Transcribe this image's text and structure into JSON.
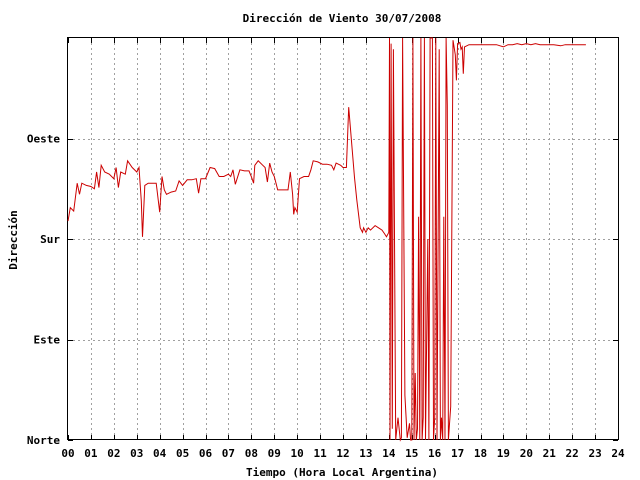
{
  "chart_data": {
    "type": "line",
    "title": "Dirección de Viento 30/07/2008",
    "xlabel": "Tiempo (Hora Local Argentina)",
    "ylabel": "Dirección",
    "xlim": [
      0,
      24
    ],
    "ylim": [
      0,
      360
    ],
    "grid": true,
    "x_tick_labels": [
      "00",
      "01",
      "02",
      "03",
      "04",
      "05",
      "06",
      "07",
      "08",
      "09",
      "10",
      "11",
      "12",
      "13",
      "14",
      "15",
      "16",
      "17",
      "18",
      "19",
      "20",
      "21",
      "22",
      "23",
      "24"
    ],
    "y_ticks": [
      {
        "value": 0,
        "label": "Norte"
      },
      {
        "value": 90,
        "label": "Este"
      },
      {
        "value": 180,
        "label": "Sur"
      },
      {
        "value": 270,
        "label": "Oeste"
      }
    ],
    "series": [
      {
        "color": "#cc0000",
        "points": [
          [
            0.0,
            196
          ],
          [
            0.1,
            208
          ],
          [
            0.25,
            205
          ],
          [
            0.4,
            230
          ],
          [
            0.5,
            220
          ],
          [
            0.6,
            230
          ],
          [
            0.8,
            228
          ],
          [
            1.0,
            227
          ],
          [
            1.15,
            225
          ],
          [
            1.25,
            240
          ],
          [
            1.35,
            226
          ],
          [
            1.45,
            246
          ],
          [
            1.6,
            240
          ],
          [
            1.8,
            238
          ],
          [
            2.0,
            234
          ],
          [
            2.1,
            244
          ],
          [
            2.2,
            226
          ],
          [
            2.3,
            240
          ],
          [
            2.5,
            238
          ],
          [
            2.6,
            250
          ],
          [
            2.8,
            244
          ],
          [
            3.0,
            240
          ],
          [
            3.1,
            244
          ],
          [
            3.2,
            214
          ],
          [
            3.25,
            182
          ],
          [
            3.35,
            228
          ],
          [
            3.5,
            230
          ],
          [
            3.7,
            230
          ],
          [
            3.85,
            230
          ],
          [
            4.0,
            204
          ],
          [
            4.1,
            236
          ],
          [
            4.2,
            224
          ],
          [
            4.3,
            220
          ],
          [
            4.5,
            222
          ],
          [
            4.7,
            223
          ],
          [
            4.85,
            232
          ],
          [
            5.0,
            228
          ],
          [
            5.2,
            233
          ],
          [
            5.4,
            233
          ],
          [
            5.6,
            234
          ],
          [
            5.7,
            221
          ],
          [
            5.8,
            234
          ],
          [
            6.0,
            234
          ],
          [
            6.2,
            244
          ],
          [
            6.4,
            243
          ],
          [
            6.6,
            236
          ],
          [
            6.8,
            236
          ],
          [
            7.0,
            238
          ],
          [
            7.1,
            236
          ],
          [
            7.2,
            242
          ],
          [
            7.3,
            229
          ],
          [
            7.5,
            242
          ],
          [
            7.7,
            241
          ],
          [
            7.9,
            241
          ],
          [
            8.0,
            236
          ],
          [
            8.1,
            230
          ],
          [
            8.15,
            246
          ],
          [
            8.3,
            250
          ],
          [
            8.5,
            246
          ],
          [
            8.6,
            244
          ],
          [
            8.7,
            231
          ],
          [
            8.8,
            248
          ],
          [
            8.9,
            240
          ],
          [
            9.0,
            236
          ],
          [
            9.15,
            224
          ],
          [
            9.3,
            224
          ],
          [
            9.6,
            224
          ],
          [
            9.7,
            240
          ],
          [
            9.8,
            220
          ],
          [
            9.85,
            202
          ],
          [
            9.9,
            208
          ],
          [
            10.0,
            204
          ],
          [
            10.1,
            234
          ],
          [
            10.3,
            236
          ],
          [
            10.5,
            236
          ],
          [
            10.6,
            242
          ],
          [
            10.7,
            250
          ],
          [
            10.9,
            249
          ],
          [
            11.1,
            247
          ],
          [
            11.3,
            247
          ],
          [
            11.5,
            246
          ],
          [
            11.6,
            242
          ],
          [
            11.7,
            248
          ],
          [
            11.9,
            246
          ],
          [
            12.0,
            244
          ],
          [
            12.15,
            244
          ],
          [
            12.25,
            298
          ],
          [
            12.4,
            260
          ],
          [
            12.5,
            235
          ],
          [
            12.6,
            215
          ],
          [
            12.75,
            190
          ],
          [
            12.85,
            186
          ],
          [
            12.9,
            190
          ],
          [
            13.0,
            186
          ],
          [
            13.1,
            190
          ],
          [
            13.2,
            188
          ],
          [
            13.4,
            192
          ],
          [
            13.55,
            190
          ],
          [
            13.7,
            188
          ],
          [
            13.8,
            185
          ],
          [
            13.9,
            182
          ],
          [
            14.0,
            186
          ],
          [
            14.03,
            360
          ],
          [
            14.05,
            0
          ],
          [
            14.1,
            355
          ],
          [
            14.15,
            10
          ],
          [
            14.2,
            350
          ],
          [
            14.3,
            0
          ],
          [
            14.4,
            20
          ],
          [
            14.5,
            0
          ],
          [
            14.55,
            2
          ],
          [
            14.6,
            360
          ],
          [
            14.7,
            40
          ],
          [
            14.8,
            2
          ],
          [
            14.9,
            15
          ],
          [
            14.95,
            0
          ],
          [
            15.0,
            0
          ],
          [
            15.05,
            360
          ],
          [
            15.1,
            0
          ],
          [
            15.15,
            60
          ],
          [
            15.2,
            0
          ],
          [
            15.25,
            10
          ],
          [
            15.3,
            200
          ],
          [
            15.35,
            0
          ],
          [
            15.4,
            360
          ],
          [
            15.45,
            0
          ],
          [
            15.5,
            20
          ],
          [
            15.55,
            360
          ],
          [
            15.6,
            0
          ],
          [
            15.7,
            180
          ],
          [
            15.75,
            0
          ],
          [
            15.8,
            360
          ],
          [
            15.9,
            360
          ],
          [
            15.95,
            0
          ],
          [
            16.0,
            20
          ],
          [
            16.05,
            360
          ],
          [
            16.1,
            0
          ],
          [
            16.2,
            350
          ],
          [
            16.25,
            0
          ],
          [
            16.3,
            20
          ],
          [
            16.35,
            0
          ],
          [
            16.4,
            200
          ],
          [
            16.45,
            0
          ],
          [
            16.5,
            360
          ],
          [
            16.55,
            300
          ],
          [
            16.6,
            0
          ],
          [
            16.7,
            30
          ],
          [
            16.8,
            358
          ],
          [
            16.9,
            345
          ],
          [
            16.95,
            322
          ],
          [
            17.0,
            355
          ],
          [
            17.1,
            356
          ],
          [
            17.15,
            350
          ],
          [
            17.2,
            352
          ],
          [
            17.25,
            328
          ],
          [
            17.3,
            352
          ],
          [
            17.5,
            354
          ],
          [
            17.7,
            354
          ],
          [
            18.0,
            354
          ],
          [
            18.2,
            354
          ],
          [
            18.4,
            354
          ],
          [
            18.7,
            354
          ],
          [
            19.0,
            352
          ],
          [
            19.2,
            354
          ],
          [
            19.4,
            354
          ],
          [
            19.6,
            355
          ],
          [
            19.8,
            354
          ],
          [
            20.0,
            355
          ],
          [
            20.2,
            354
          ],
          [
            20.4,
            355
          ],
          [
            20.6,
            354
          ],
          [
            20.8,
            354
          ],
          [
            21.0,
            354
          ],
          [
            21.2,
            354
          ],
          [
            21.5,
            353
          ],
          [
            21.7,
            354
          ],
          [
            22.0,
            354
          ],
          [
            22.3,
            354
          ],
          [
            22.6,
            354
          ]
        ]
      }
    ]
  }
}
